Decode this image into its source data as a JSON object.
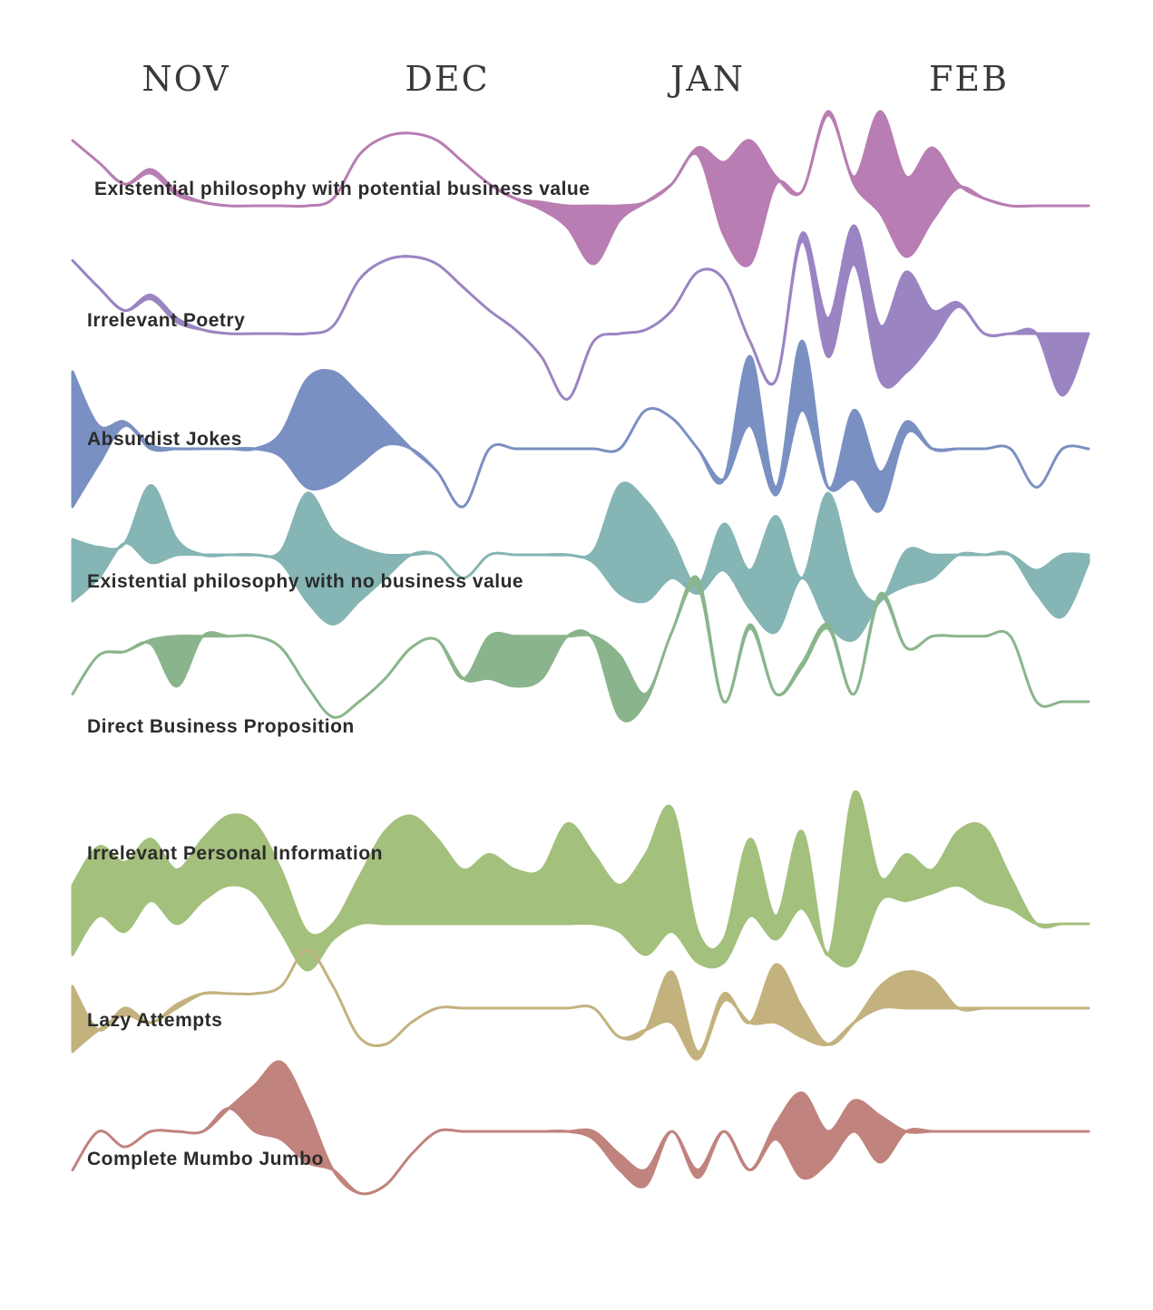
{
  "chart_data": {
    "type": "area",
    "months": [
      "NOV",
      "DEC",
      "JAN",
      "FEB"
    ],
    "x": [
      0,
      3,
      6,
      9,
      12,
      15,
      18,
      21,
      24,
      27,
      30,
      33,
      36,
      39,
      42,
      45,
      48,
      51,
      54,
      57,
      60,
      63,
      66,
      69,
      72,
      75,
      78,
      81,
      84,
      87,
      90,
      93,
      96,
      99,
      102,
      105,
      108,
      111,
      114,
      117
    ],
    "series": [
      {
        "name": "Existential philosophy with potential business value",
        "color": "#b87db2",
        "upper": [
          0.9,
          0.6,
          0.3,
          0.5,
          0.2,
          0.05,
          0.0,
          0.0,
          0.0,
          0.0,
          0.1,
          0.7,
          0.95,
          1.0,
          0.9,
          0.6,
          0.3,
          0.1,
          0.05,
          0.0,
          0.0,
          0.0,
          0.05,
          0.3,
          0.8,
          0.6,
          0.9,
          0.4,
          0.2,
          1.3,
          0.4,
          1.3,
          0.4,
          0.8,
          0.3,
          0.1,
          0.0,
          0.0,
          0.0,
          0.0
        ],
        "lower": [
          0.9,
          0.6,
          0.3,
          0.45,
          0.15,
          0.05,
          0.0,
          0.0,
          0.0,
          0.0,
          0.1,
          0.7,
          0.95,
          1.0,
          0.9,
          0.6,
          0.3,
          0.1,
          -0.05,
          -0.3,
          -0.8,
          -0.2,
          0.05,
          0.3,
          0.7,
          -0.4,
          -0.8,
          0.3,
          0.2,
          1.25,
          0.3,
          -0.1,
          -0.7,
          -0.2,
          0.25,
          0.1,
          0.0,
          0.0,
          0.0,
          0.0
        ]
      },
      {
        "name": "Irrelevant Poetry",
        "color": "#9b84c2",
        "upper": [
          0.95,
          0.6,
          0.3,
          0.5,
          0.2,
          0.05,
          0.0,
          0.0,
          0.0,
          0.0,
          0.1,
          0.7,
          0.95,
          1.0,
          0.9,
          0.6,
          0.3,
          0.05,
          -0.3,
          -0.85,
          -0.1,
          0.0,
          0.05,
          0.3,
          0.8,
          0.7,
          -0.1,
          -0.6,
          1.3,
          0.2,
          1.4,
          0.1,
          0.8,
          0.3,
          0.4,
          0.0,
          0.0,
          0.0,
          0.0,
          0.0
        ],
        "lower": [
          0.95,
          0.6,
          0.3,
          0.45,
          0.15,
          0.05,
          0.0,
          0.0,
          0.0,
          0.0,
          0.1,
          0.7,
          0.95,
          1.0,
          0.9,
          0.6,
          0.3,
          0.05,
          -0.3,
          -0.85,
          -0.1,
          0.0,
          0.05,
          0.3,
          0.8,
          0.7,
          -0.1,
          -0.6,
          1.2,
          -0.3,
          0.9,
          -0.6,
          -0.5,
          -0.1,
          0.35,
          0.0,
          0.0,
          0.0,
          -0.8,
          0.0
        ]
      },
      {
        "name": "Absurdist Jokes",
        "color": "#7a90c2",
        "upper": [
          1.0,
          0.3,
          0.35,
          0.05,
          0.0,
          0.0,
          0.0,
          0.0,
          0.2,
          0.9,
          1.0,
          0.7,
          0.35,
          0.0,
          -0.3,
          -0.75,
          0.0,
          0.0,
          0.0,
          0.0,
          0.0,
          0.0,
          0.5,
          0.4,
          0.0,
          -0.4,
          1.2,
          -0.5,
          1.4,
          -0.5,
          0.5,
          -0.3,
          0.35,
          0.0,
          0.0,
          0.0,
          0.0,
          -0.5,
          0.0,
          0.0
        ],
        "lower": [
          -0.75,
          -0.2,
          0.3,
          0.0,
          0.0,
          0.0,
          0.0,
          0.0,
          -0.1,
          -0.5,
          -0.45,
          -0.2,
          0.05,
          0.0,
          -0.3,
          -0.75,
          0.0,
          0.0,
          0.0,
          0.0,
          0.0,
          0.0,
          0.5,
          0.4,
          0.0,
          -0.4,
          0.3,
          -0.6,
          0.5,
          -0.5,
          -0.4,
          -0.8,
          0.2,
          0.0,
          0.0,
          0.0,
          0.0,
          -0.5,
          0.0,
          0.0
        ]
      },
      {
        "name": "Existential philosophy with no business value",
        "color": "#85b5b4",
        "upper": [
          0.2,
          0.1,
          0.15,
          0.9,
          0.2,
          0.0,
          0.0,
          0.0,
          0.05,
          0.8,
          0.3,
          0.1,
          0.0,
          0.0,
          0.0,
          -0.3,
          0.0,
          0.0,
          0.0,
          0.0,
          0.05,
          0.9,
          0.7,
          0.2,
          -0.4,
          0.4,
          -0.2,
          0.5,
          -0.3,
          0.8,
          -0.3,
          -0.6,
          0.05,
          0.0,
          0.0,
          0.0,
          0.0,
          -0.2,
          0.0,
          0.0
        ],
        "lower": [
          -0.6,
          -0.3,
          0.15,
          -0.1,
          0.0,
          0.0,
          0.0,
          0.0,
          -0.1,
          -0.6,
          -0.9,
          -0.6,
          -0.3,
          0.0,
          0.0,
          -0.3,
          0.0,
          0.0,
          0.0,
          0.0,
          -0.1,
          -0.5,
          -0.6,
          -0.3,
          -0.5,
          -0.2,
          -0.7,
          -1.0,
          -0.3,
          -0.9,
          -1.1,
          -0.6,
          -0.4,
          -0.3,
          0.0,
          0.0,
          0.0,
          -0.5,
          -0.8,
          -0.1
        ]
      },
      {
        "name": "Direct Business Proposition",
        "color": "#8ab58c",
        "upper": [
          -0.3,
          0.2,
          0.25,
          0.4,
          0.45,
          0.45,
          0.45,
          0.45,
          0.3,
          -0.2,
          -0.6,
          -0.4,
          -0.1,
          0.3,
          0.4,
          -0.1,
          0.45,
          0.45,
          0.45,
          0.45,
          0.45,
          0.2,
          -0.3,
          0.5,
          1.2,
          -0.4,
          0.6,
          -0.3,
          0.1,
          0.6,
          -0.3,
          1.0,
          0.3,
          0.45,
          0.45,
          0.45,
          0.45,
          -0.4,
          -0.4,
          -0.4
        ],
        "lower": [
          -0.3,
          0.2,
          0.25,
          0.35,
          -0.2,
          0.45,
          0.45,
          0.45,
          0.3,
          -0.2,
          -0.6,
          -0.4,
          -0.1,
          0.3,
          0.4,
          -0.1,
          -0.1,
          -0.2,
          -0.1,
          0.45,
          0.4,
          -0.6,
          -0.4,
          0.5,
          1.1,
          -0.4,
          0.55,
          -0.3,
          0.05,
          0.55,
          -0.3,
          0.95,
          0.3,
          0.45,
          0.45,
          0.45,
          0.45,
          -0.4,
          -0.4,
          -0.4
        ]
      },
      {
        "name": "Irrelevant Personal Information",
        "color": "#a3c07c",
        "upper": [
          0.1,
          0.6,
          0.4,
          0.7,
          0.3,
          0.7,
          1.0,
          0.9,
          0.3,
          -0.5,
          -0.4,
          0.2,
          0.8,
          1.0,
          0.7,
          0.3,
          0.5,
          0.3,
          0.3,
          0.9,
          0.5,
          0.1,
          0.5,
          1.1,
          -0.5,
          -0.6,
          0.7,
          -0.3,
          0.8,
          -0.8,
          1.3,
          0.2,
          0.5,
          0.3,
          0.8,
          0.85,
          0.2,
          -0.4,
          -0.4,
          -0.4
        ],
        "lower": [
          -0.8,
          -0.3,
          -0.5,
          -0.1,
          -0.4,
          -0.1,
          0.1,
          0.0,
          -0.5,
          -1.0,
          -0.6,
          -0.4,
          -0.4,
          -0.4,
          -0.4,
          -0.4,
          -0.4,
          -0.4,
          -0.4,
          -0.4,
          -0.4,
          -0.5,
          -0.8,
          -0.5,
          -0.9,
          -0.9,
          -0.3,
          -0.6,
          -0.2,
          -0.8,
          -0.9,
          -0.1,
          -0.1,
          0.0,
          0.1,
          -0.1,
          -0.2,
          -0.4,
          -0.4,
          -0.4
        ]
      },
      {
        "name": "Lazy Attempts",
        "color": "#c3b27e",
        "upper": [
          0.3,
          -0.3,
          0.0,
          -0.2,
          0.05,
          0.2,
          0.2,
          0.2,
          0.3,
          0.8,
          0.3,
          -0.4,
          -0.5,
          -0.2,
          0.0,
          0.0,
          0.0,
          0.0,
          0.0,
          0.0,
          0.0,
          -0.4,
          -0.3,
          0.5,
          -0.6,
          0.2,
          -0.2,
          0.6,
          0.0,
          -0.5,
          -0.2,
          0.3,
          0.5,
          0.4,
          0.0,
          0.0,
          0.0,
          0.0,
          0.0,
          0.0
        ],
        "lower": [
          -0.6,
          -0.3,
          -0.1,
          -0.2,
          0.0,
          0.2,
          0.2,
          0.2,
          0.3,
          0.8,
          0.3,
          -0.4,
          -0.5,
          -0.2,
          0.0,
          0.0,
          0.0,
          0.0,
          0.0,
          0.0,
          0.0,
          -0.4,
          -0.3,
          -0.2,
          -0.7,
          0.1,
          -0.2,
          -0.2,
          -0.4,
          -0.5,
          -0.2,
          0.0,
          0.0,
          0.0,
          0.0,
          0.0,
          0.0,
          0.0,
          0.0,
          0.0
        ]
      },
      {
        "name": "Complete Mumbo Jumbo",
        "color": "#c0837d",
        "upper": [
          -0.5,
          0.0,
          -0.2,
          0.0,
          0.0,
          0.0,
          0.3,
          0.6,
          0.9,
          0.3,
          -0.5,
          -0.8,
          -0.7,
          -0.3,
          0.0,
          0.0,
          0.0,
          0.0,
          0.0,
          0.0,
          0.0,
          -0.3,
          -0.5,
          0.0,
          -0.5,
          0.0,
          -0.5,
          0.1,
          0.5,
          0.0,
          0.4,
          0.2,
          0.0,
          0.0,
          0.0,
          0.0,
          0.0,
          0.0,
          0.0,
          0.0
        ],
        "lower": [
          -0.5,
          0.0,
          -0.2,
          0.0,
          0.0,
          0.0,
          0.3,
          0.0,
          -0.1,
          -0.4,
          -0.5,
          -0.8,
          -0.7,
          -0.3,
          0.0,
          0.0,
          0.0,
          0.0,
          0.0,
          0.0,
          -0.1,
          -0.5,
          -0.7,
          0.0,
          -0.6,
          0.0,
          -0.5,
          -0.1,
          -0.6,
          -0.4,
          0.0,
          -0.4,
          0.0,
          0.0,
          0.0,
          0.0,
          0.0,
          0.0,
          0.0,
          0.0
        ]
      }
    ]
  }
}
